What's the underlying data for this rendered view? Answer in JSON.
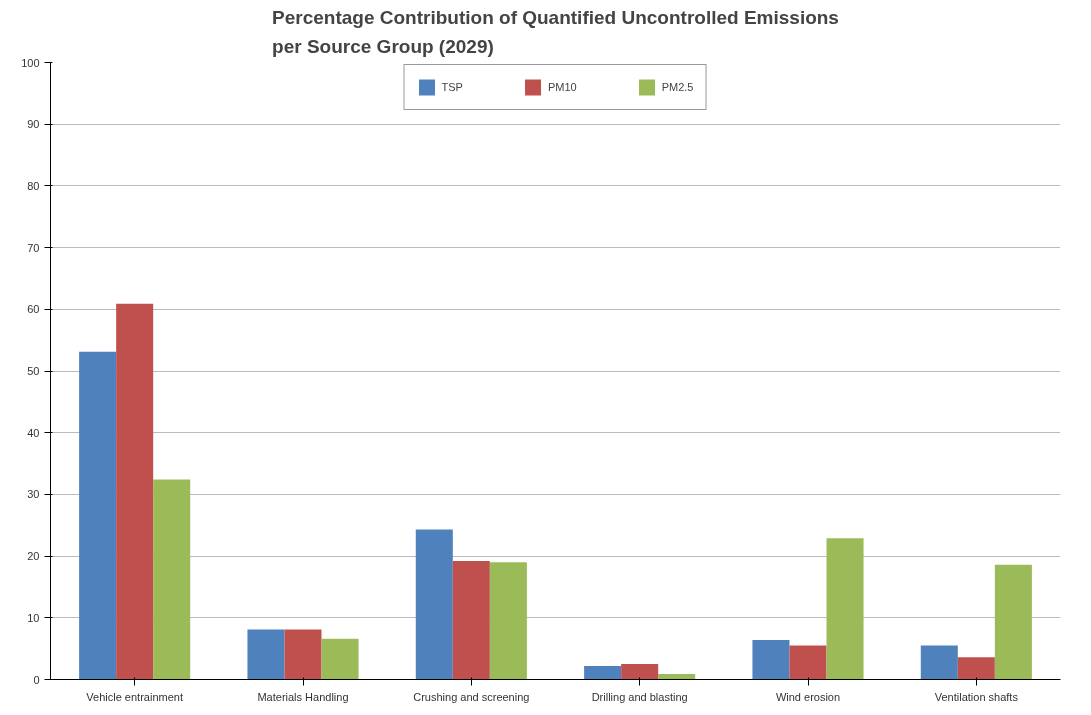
{
  "chart_data": {
    "type": "bar",
    "title": "Percentage Contribution of Quantified Uncontrolled Emissions\nper Source Group (2029)",
    "categories": [
      "Vehicle entrainment",
      "Materials Handling",
      "Crushing and screening",
      "Drilling and blasting",
      "Wind erosion",
      "Ventilation shafts"
    ],
    "series": [
      {
        "name": "TSP",
        "color": "#4f81bd",
        "values": [
          53.1,
          8.1,
          24.3,
          2.2,
          6.4,
          5.5
        ]
      },
      {
        "name": "PM10",
        "color": "#c0504d",
        "values": [
          60.9,
          8.1,
          19.2,
          2.5,
          5.5,
          3.6
        ]
      },
      {
        "name": "PM2.5",
        "color": "#9bbb59",
        "values": [
          32.4,
          6.6,
          19.0,
          0.9,
          22.9,
          18.6
        ]
      }
    ],
    "ylim": [
      0,
      100
    ],
    "yticks": [
      0,
      10,
      20,
      30,
      40,
      50,
      60,
      70,
      80,
      90,
      100
    ],
    "grid": "y",
    "legend": "top"
  }
}
